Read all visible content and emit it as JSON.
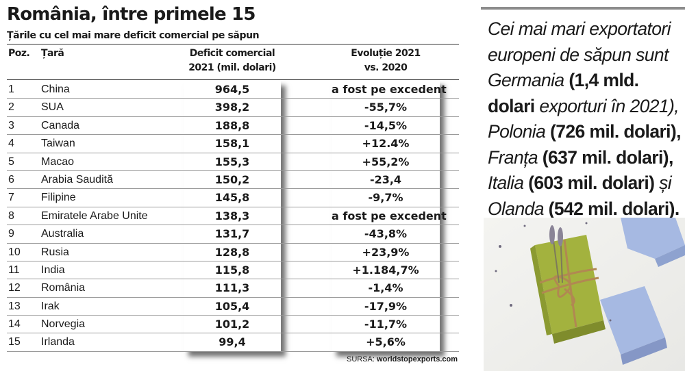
{
  "header": {
    "title": "România, între primele 15",
    "subtitle": "Țările cu cel mai mare deficit comercial pe săpun"
  },
  "table": {
    "columns": {
      "poz": "Poz.",
      "tara": "Țară",
      "deficit_line1": "Deficit comercial",
      "deficit_line2": "2021 (mil. dolari)",
      "evolutie_line1": "Evoluție 2021",
      "evolutie_line2": "vs. 2020"
    },
    "rows": [
      {
        "poz": "1",
        "tara": "China",
        "deficit": "964,5",
        "evolutie": "a fost pe excedent"
      },
      {
        "poz": "2",
        "tara": "SUA",
        "deficit": "398,2",
        "evolutie": "-55,7%"
      },
      {
        "poz": "3",
        "tara": "Canada",
        "deficit": "188,8",
        "evolutie": "-14,5%"
      },
      {
        "poz": "4",
        "tara": "Taiwan",
        "deficit": "158,1",
        "evolutie": "+12.4%"
      },
      {
        "poz": "5",
        "tara": "Macao",
        "deficit": "155,3",
        "evolutie": "+55,2%"
      },
      {
        "poz": "6",
        "tara": "Arabia Saudită",
        "deficit": "150,2",
        "evolutie": "-23,4"
      },
      {
        "poz": "7",
        "tara": "Filipine",
        "deficit": "145,8",
        "evolutie": "-9,7%"
      },
      {
        "poz": "8",
        "tara": "Emiratele Arabe Unite",
        "deficit": "138,3",
        "evolutie": "a fost pe excedent"
      },
      {
        "poz": "9",
        "tara": "Australia",
        "deficit": "131,7",
        "evolutie": "-43,8%"
      },
      {
        "poz": "10",
        "tara": "Rusia",
        "deficit": "128,8",
        "evolutie": "+23,9%"
      },
      {
        "poz": "11",
        "tara": "India",
        "deficit": "115,8",
        "evolutie": "+1.184,7%"
      },
      {
        "poz": "12",
        "tara": "România",
        "deficit": "111,3",
        "evolutie": "-1,4%"
      },
      {
        "poz": "13",
        "tara": "Irak",
        "deficit": "105,4",
        "evolutie": "-17,9%"
      },
      {
        "poz": "14",
        "tara": "Norvegia",
        "deficit": "101,2",
        "evolutie": "-11,7%"
      },
      {
        "poz": "15",
        "tara": "Irlanda",
        "deficit": "99,4",
        "evolutie": "+5,6%"
      }
    ]
  },
  "source": {
    "label": "SURSA:",
    "value": "worldstopexports.com"
  },
  "sidebar": {
    "p1": "Cei mai mari exportatori europeni de săpun sunt",
    "c1": "Germania",
    "v1": "(1,4 mld. dolari",
    "v1b": "exporturi în 2021),",
    "c2": "Polonia",
    "v2": "(726 mil. dolari),",
    "c3": "Franța",
    "v3": "(637 mil. dolari),",
    "c4": "Italia",
    "v4": "(603 mil. dolari)",
    "conj": "și",
    "c5": "Olanda",
    "v5": "(542 mil. dolari)."
  },
  "colors": {
    "soap_green": "#a3b23e",
    "soap_blue": "#a6b9e2",
    "twine": "#b18852",
    "lavender": "#8a8496"
  }
}
